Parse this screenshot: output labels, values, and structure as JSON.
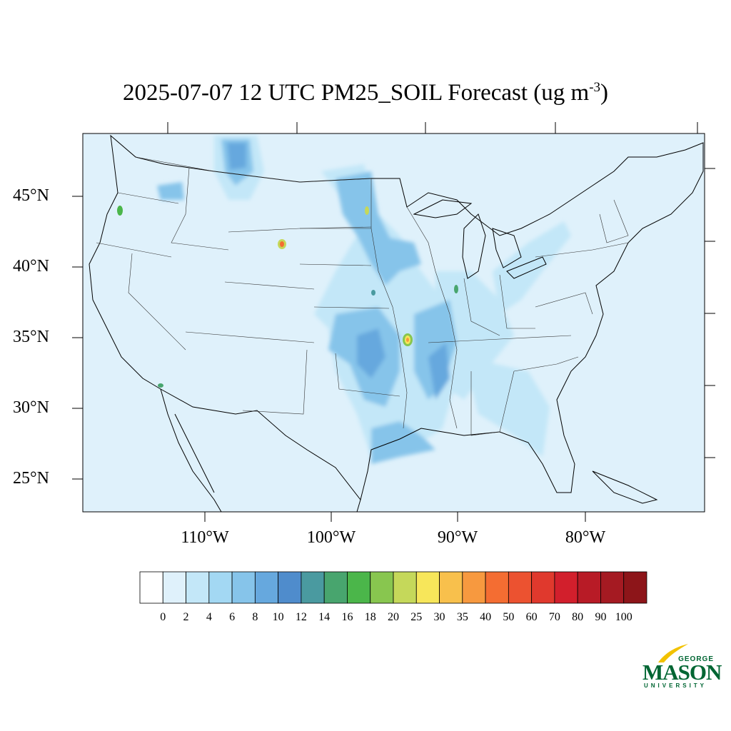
{
  "title": {
    "main": "2025-07-07 12 UTC PM25_SOIL Forecast (ug m",
    "sup": "-3",
    "close": ")"
  },
  "axes": {
    "lat_labels": [
      "45°N",
      "40°N",
      "35°N",
      "30°N",
      "25°N"
    ],
    "lon_labels": [
      "110°W",
      "100°W",
      "90°W",
      "80°W"
    ]
  },
  "colorbar": {
    "levels": [
      "0",
      "2",
      "4",
      "6",
      "8",
      "10",
      "12",
      "14",
      "16",
      "18",
      "20",
      "25",
      "30",
      "35",
      "40",
      "50",
      "60",
      "70",
      "80",
      "90",
      "100"
    ],
    "colors": [
      "#ffffff",
      "#dff1fb",
      "#c3e7f8",
      "#a3d8f3",
      "#86c4ea",
      "#66a8de",
      "#4f8ccc",
      "#4a9aa0",
      "#48a56e",
      "#4bb64a",
      "#88c64f",
      "#c5d85a",
      "#f7e65a",
      "#f8c04c",
      "#f7993f",
      "#f46d32",
      "#ec5230",
      "#e0392d",
      "#d21f2c",
      "#b81b26",
      "#a51a22",
      "#8d1519"
    ]
  },
  "map": {
    "ocean_color": "#dff1fb"
  },
  "logo": {
    "top": "GEORGE",
    "main": "MASON",
    "bottom": "UNIVERSITY",
    "color": "#006633",
    "accent": "#f2c200"
  }
}
